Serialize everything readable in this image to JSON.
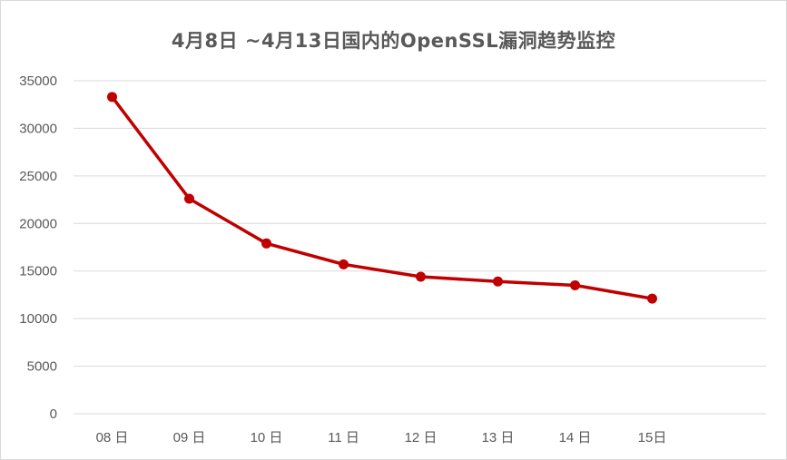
{
  "chart_data": {
    "type": "line",
    "title": "4月8日 ~4月13日国内的OpenSSL漏洞趋势监控",
    "xlabel": "",
    "ylabel": "",
    "categories": [
      "08 日",
      "09 日",
      "10 日",
      "11 日",
      "12 日",
      "13 日",
      "14 日",
      "15日"
    ],
    "series": [
      {
        "values": [
          33300,
          22600,
          17900,
          15700,
          14400,
          13900,
          13500,
          12100
        ]
      }
    ],
    "ylim": [
      0,
      35000
    ],
    "yticks": [
      0,
      5000,
      10000,
      15000,
      20000,
      25000,
      30000,
      35000
    ],
    "ytick_labels": [
      "0",
      "5000",
      "10000",
      "15000",
      "20000",
      "25000",
      "30000",
      "35000"
    ],
    "grid": "horizontal",
    "legend": "none",
    "line_color": "#c00000",
    "grid_color": "#d9d9d9"
  }
}
